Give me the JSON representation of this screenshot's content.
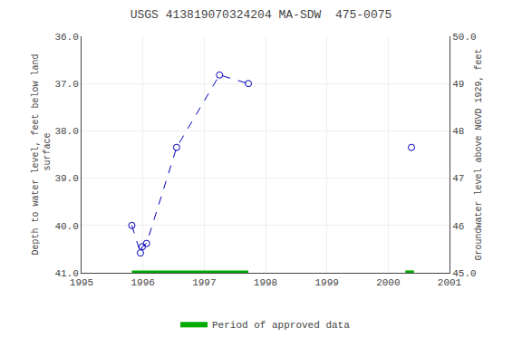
{
  "chart_data": {
    "type": "line",
    "title": "USGS 413819070324204 MA-SDW  475-0075",
    "ylabel": "Depth to water level, feet below land\n surface",
    "y2label": "Groundwater level above NGVD 1929, feet",
    "xlim": [
      1995,
      2001
    ],
    "xticks": [
      1995,
      1996,
      1997,
      1998,
      1999,
      2000,
      2001
    ],
    "ylim": [
      41.0,
      36.0
    ],
    "yticks": [
      {
        "value": 36.0,
        "label": "36.0"
      },
      {
        "value": 37.0,
        "label": "37.0"
      },
      {
        "value": 38.0,
        "label": "38.0"
      },
      {
        "value": 39.0,
        "label": "39.0"
      },
      {
        "value": 40.0,
        "label": "40.0"
      },
      {
        "value": 41.0,
        "label": "41.0"
      }
    ],
    "y2lim": [
      45.0,
      50.0
    ],
    "y2ticks": [
      {
        "value": 45.0,
        "label": "45.0"
      },
      46,
      47,
      48,
      49,
      {
        "value": 50.0,
        "label": "50.0"
      }
    ],
    "grid": true,
    "legend": "bottom",
    "series": [
      {
        "type": "line",
        "line_style": "dashed",
        "marker": "open circle",
        "color": "#0000bb",
        "x": [
          1995.82,
          1995.96,
          1995.99,
          1996.06,
          1996.55,
          1997.25,
          1997.72
        ],
        "values": [
          40.0,
          40.58,
          40.45,
          40.38,
          38.35,
          36.82,
          37.0
        ]
      },
      {
        "type": "scatter",
        "marker": "open circle",
        "color": "#0000bb",
        "x": [
          2000.38
        ],
        "values": [
          38.35
        ]
      },
      {
        "type": "band",
        "name": "Period of approved data",
        "color": "#00aa00",
        "y": 41.0,
        "height": 0.1,
        "periods": [
          {
            "start": 1995.82,
            "end": 1997.72
          },
          {
            "start": 2000.28,
            "end": 2000.42
          }
        ]
      }
    ]
  }
}
